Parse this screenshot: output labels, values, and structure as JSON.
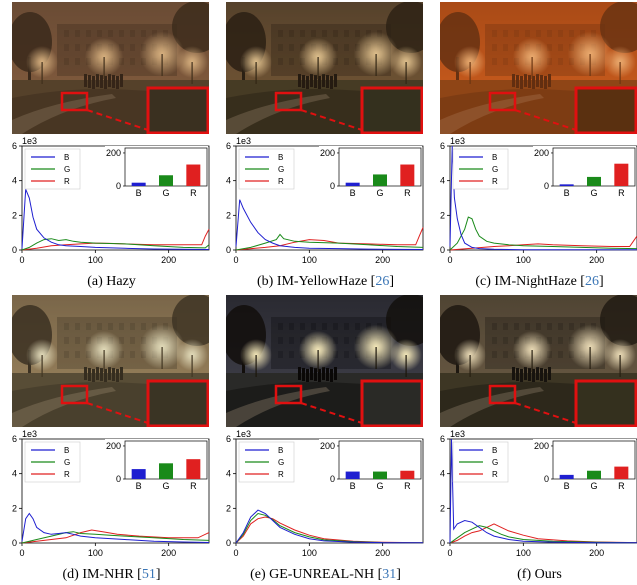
{
  "figure": {
    "panels": [
      {
        "caption_prefix": "(a) Hazy",
        "cite": "",
        "caption_suffix": ""
      },
      {
        "caption_prefix": "(b) IM-YellowHaze [",
        "cite": "26",
        "caption_suffix": "]"
      },
      {
        "caption_prefix": "(c) IM-NightHaze [",
        "cite": "26",
        "caption_suffix": "]"
      },
      {
        "caption_prefix": "(d) IM-NHR [",
        "cite": "51",
        "caption_suffix": "]"
      },
      {
        "caption_prefix": "(e) GE-UNREAL-NH [",
        "cite": "31",
        "caption_suffix": "]"
      },
      {
        "caption_prefix": "(f) Ours",
        "cite": "",
        "caption_suffix": ""
      }
    ]
  },
  "colors": {
    "B": "#1f1fd0",
    "G": "#1a8a1a",
    "R": "#e02020",
    "zoom_box": "#e01010"
  },
  "chart_data": [
    {
      "type": "line",
      "panel": "(a) Hazy",
      "x_ticks": [
        "0",
        "100",
        "200"
      ],
      "y_ticks": [
        "0",
        "2",
        "4",
        "6"
      ],
      "y_scale": "1e3",
      "ylim": [
        0,
        6000
      ],
      "xlim": [
        0,
        255
      ],
      "series": [
        {
          "name": "B",
          "x": [
            0,
            5,
            10,
            15,
            20,
            30,
            40,
            50,
            60,
            80,
            100,
            140,
            180,
            220,
            255
          ],
          "y": [
            100,
            3500,
            3000,
            1900,
            1200,
            700,
            450,
            300,
            250,
            200,
            150,
            100,
            60,
            40,
            30
          ]
        },
        {
          "name": "G",
          "x": [
            0,
            10,
            20,
            30,
            40,
            50,
            60,
            70,
            80,
            100,
            140,
            180,
            220,
            250,
            255
          ],
          "y": [
            0,
            150,
            400,
            600,
            650,
            550,
            600,
            500,
            450,
            400,
            350,
            250,
            150,
            120,
            300
          ]
        },
        {
          "name": "R",
          "x": [
            0,
            20,
            40,
            60,
            80,
            100,
            120,
            140,
            180,
            220,
            245,
            250,
            255
          ],
          "y": [
            0,
            100,
            250,
            300,
            350,
            400,
            380,
            350,
            300,
            300,
            300,
            800,
            1200
          ]
        }
      ],
      "inset": {
        "type": "bar",
        "categories": [
          "B",
          "G",
          "R"
        ],
        "values": [
          20,
          65,
          130
        ],
        "y_ticks": [
          "0",
          "200"
        ],
        "ylim": [
          0,
          230
        ]
      }
    },
    {
      "type": "line",
      "panel": "(b) IM-YellowHaze",
      "x_ticks": [
        "0",
        "100",
        "200"
      ],
      "y_ticks": [
        "0",
        "2",
        "4",
        "6"
      ],
      "y_scale": "1e3",
      "ylim": [
        0,
        6000
      ],
      "xlim": [
        0,
        255
      ],
      "series": [
        {
          "name": "B",
          "x": [
            0,
            5,
            10,
            20,
            30,
            40,
            50,
            60,
            80,
            100,
            140,
            180,
            255
          ],
          "y": [
            200,
            2900,
            2400,
            1600,
            1000,
            600,
            400,
            250,
            150,
            100,
            80,
            50,
            30
          ]
        },
        {
          "name": "G",
          "x": [
            0,
            20,
            40,
            55,
            60,
            65,
            80,
            100,
            140,
            180,
            220,
            255
          ],
          "y": [
            0,
            150,
            400,
            600,
            900,
            650,
            500,
            450,
            400,
            300,
            200,
            150
          ]
        },
        {
          "name": "R",
          "x": [
            0,
            40,
            60,
            80,
            100,
            120,
            140,
            180,
            220,
            245,
            250,
            255
          ],
          "y": [
            0,
            150,
            250,
            450,
            600,
            550,
            400,
            350,
            300,
            300,
            800,
            1300
          ]
        }
      ],
      "inset": {
        "type": "bar",
        "categories": [
          "B",
          "G",
          "R"
        ],
        "values": [
          20,
          70,
          130
        ],
        "y_ticks": [
          "0",
          "200"
        ],
        "ylim": [
          0,
          230
        ]
      }
    },
    {
      "type": "line",
      "panel": "(c) IM-NightHaze",
      "x_ticks": [
        "0",
        "100",
        "200"
      ],
      "y_ticks": [
        "0",
        "2",
        "4",
        "6"
      ],
      "y_scale": "1e3",
      "ylim": [
        0,
        6000
      ],
      "xlim": [
        0,
        255
      ],
      "series": [
        {
          "name": "B",
          "x": [
            0,
            3,
            6,
            10,
            15,
            20,
            30,
            40,
            60,
            100,
            200,
            255
          ],
          "y": [
            200,
            6000,
            3000,
            1800,
            900,
            400,
            150,
            80,
            40,
            20,
            10,
            10
          ]
        },
        {
          "name": "G",
          "x": [
            0,
            10,
            20,
            25,
            30,
            35,
            40,
            50,
            60,
            80,
            100,
            140,
            180,
            220,
            255
          ],
          "y": [
            0,
            400,
            1200,
            1900,
            1800,
            1200,
            800,
            500,
            400,
            300,
            250,
            200,
            150,
            100,
            80
          ]
        },
        {
          "name": "R",
          "x": [
            0,
            30,
            60,
            80,
            100,
            120,
            140,
            180,
            220,
            245,
            250,
            255
          ],
          "y": [
            0,
            100,
            200,
            250,
            300,
            350,
            300,
            250,
            200,
            200,
            500,
            800
          ]
        }
      ],
      "inset": {
        "type": "bar",
        "categories": [
          "B",
          "G",
          "R"
        ],
        "values": [
          10,
          55,
          135
        ],
        "y_ticks": [
          "0",
          "200"
        ],
        "ylim": [
          0,
          230
        ]
      }
    },
    {
      "type": "line",
      "panel": "(d) IM-NHR",
      "x_ticks": [
        "0",
        "100",
        "200"
      ],
      "y_ticks": [
        "0",
        "2",
        "4",
        "6"
      ],
      "y_scale": "1e3",
      "ylim": [
        0,
        6000
      ],
      "xlim": [
        0,
        255
      ],
      "series": [
        {
          "name": "B",
          "x": [
            0,
            5,
            10,
            15,
            20,
            30,
            40,
            50,
            60,
            70,
            80,
            100,
            140,
            180,
            220,
            255
          ],
          "y": [
            100,
            1400,
            1700,
            1400,
            900,
            600,
            500,
            550,
            600,
            500,
            400,
            300,
            200,
            100,
            60,
            30
          ]
        },
        {
          "name": "G",
          "x": [
            0,
            20,
            40,
            60,
            70,
            80,
            100,
            120,
            140,
            180,
            220,
            255
          ],
          "y": [
            0,
            200,
            400,
            600,
            650,
            550,
            500,
            450,
            400,
            300,
            200,
            150
          ]
        },
        {
          "name": "R",
          "x": [
            0,
            20,
            40,
            60,
            80,
            95,
            110,
            130,
            160,
            200,
            240,
            255
          ],
          "y": [
            0,
            100,
            200,
            300,
            600,
            750,
            650,
            500,
            400,
            300,
            300,
            600
          ]
        }
      ],
      "inset": {
        "type": "bar",
        "categories": [
          "B",
          "G",
          "R"
        ],
        "values": [
          60,
          95,
          120
        ],
        "y_ticks": [
          "0",
          "200"
        ],
        "ylim": [
          0,
          230
        ]
      }
    },
    {
      "type": "line",
      "panel": "(e) GE-UNREAL-NH",
      "x_ticks": [
        "0",
        "100",
        "200"
      ],
      "y_ticks": [
        "0",
        "2",
        "4",
        "6"
      ],
      "y_scale": "1e3",
      "ylim": [
        0,
        6000
      ],
      "xlim": [
        0,
        255
      ],
      "series": [
        {
          "name": "B",
          "x": [
            0,
            10,
            20,
            30,
            40,
            50,
            60,
            80,
            100,
            120,
            160,
            200,
            255
          ],
          "y": [
            0,
            600,
            1500,
            1900,
            1700,
            1300,
            900,
            500,
            250,
            120,
            50,
            20,
            10
          ]
        },
        {
          "name": "G",
          "x": [
            0,
            10,
            20,
            30,
            40,
            50,
            60,
            80,
            100,
            120,
            160,
            200,
            255
          ],
          "y": [
            0,
            500,
            1300,
            1700,
            1600,
            1350,
            1000,
            600,
            350,
            180,
            80,
            30,
            10
          ]
        },
        {
          "name": "R",
          "x": [
            0,
            10,
            20,
            30,
            40,
            50,
            60,
            80,
            100,
            120,
            160,
            200,
            255
          ],
          "y": [
            0,
            400,
            1100,
            1400,
            1500,
            1400,
            1150,
            750,
            450,
            250,
            100,
            40,
            10
          ]
        }
      ],
      "inset": {
        "type": "bar",
        "categories": [
          "B",
          "G",
          "R"
        ],
        "values": [
          45,
          45,
          50
        ],
        "y_ticks": [
          "0",
          "200"
        ],
        "ylim": [
          0,
          230
        ]
      }
    },
    {
      "type": "line",
      "panel": "(f) Ours",
      "x_ticks": [
        "0",
        "100",
        "200"
      ],
      "y_ticks": [
        "0",
        "2",
        "4",
        "6"
      ],
      "y_scale": "1e3",
      "ylim": [
        0,
        6000
      ],
      "xlim": [
        0,
        255
      ],
      "series": [
        {
          "name": "B",
          "x": [
            0,
            2,
            5,
            10,
            20,
            30,
            40,
            50,
            60,
            80,
            100,
            140,
            200,
            255
          ],
          "y": [
            0,
            6000,
            800,
            1100,
            1300,
            1200,
            900,
            600,
            400,
            200,
            100,
            50,
            20,
            10
          ]
        },
        {
          "name": "G",
          "x": [
            0,
            10,
            20,
            30,
            40,
            50,
            60,
            70,
            80,
            100,
            140,
            200,
            255
          ],
          "y": [
            0,
            300,
            600,
            800,
            1000,
            900,
            700,
            500,
            350,
            200,
            100,
            40,
            10
          ]
        },
        {
          "name": "R",
          "x": [
            0,
            10,
            20,
            30,
            40,
            50,
            60,
            70,
            80,
            100,
            120,
            160,
            200,
            255
          ],
          "y": [
            0,
            150,
            400,
            600,
            700,
            900,
            1100,
            900,
            700,
            450,
            250,
            120,
            60,
            20
          ]
        }
      ],
      "inset": {
        "type": "bar",
        "categories": [
          "B",
          "G",
          "R"
        ],
        "values": [
          25,
          50,
          75
        ],
        "y_ticks": [
          "0",
          "200"
        ],
        "ylim": [
          0,
          230
        ]
      }
    }
  ]
}
